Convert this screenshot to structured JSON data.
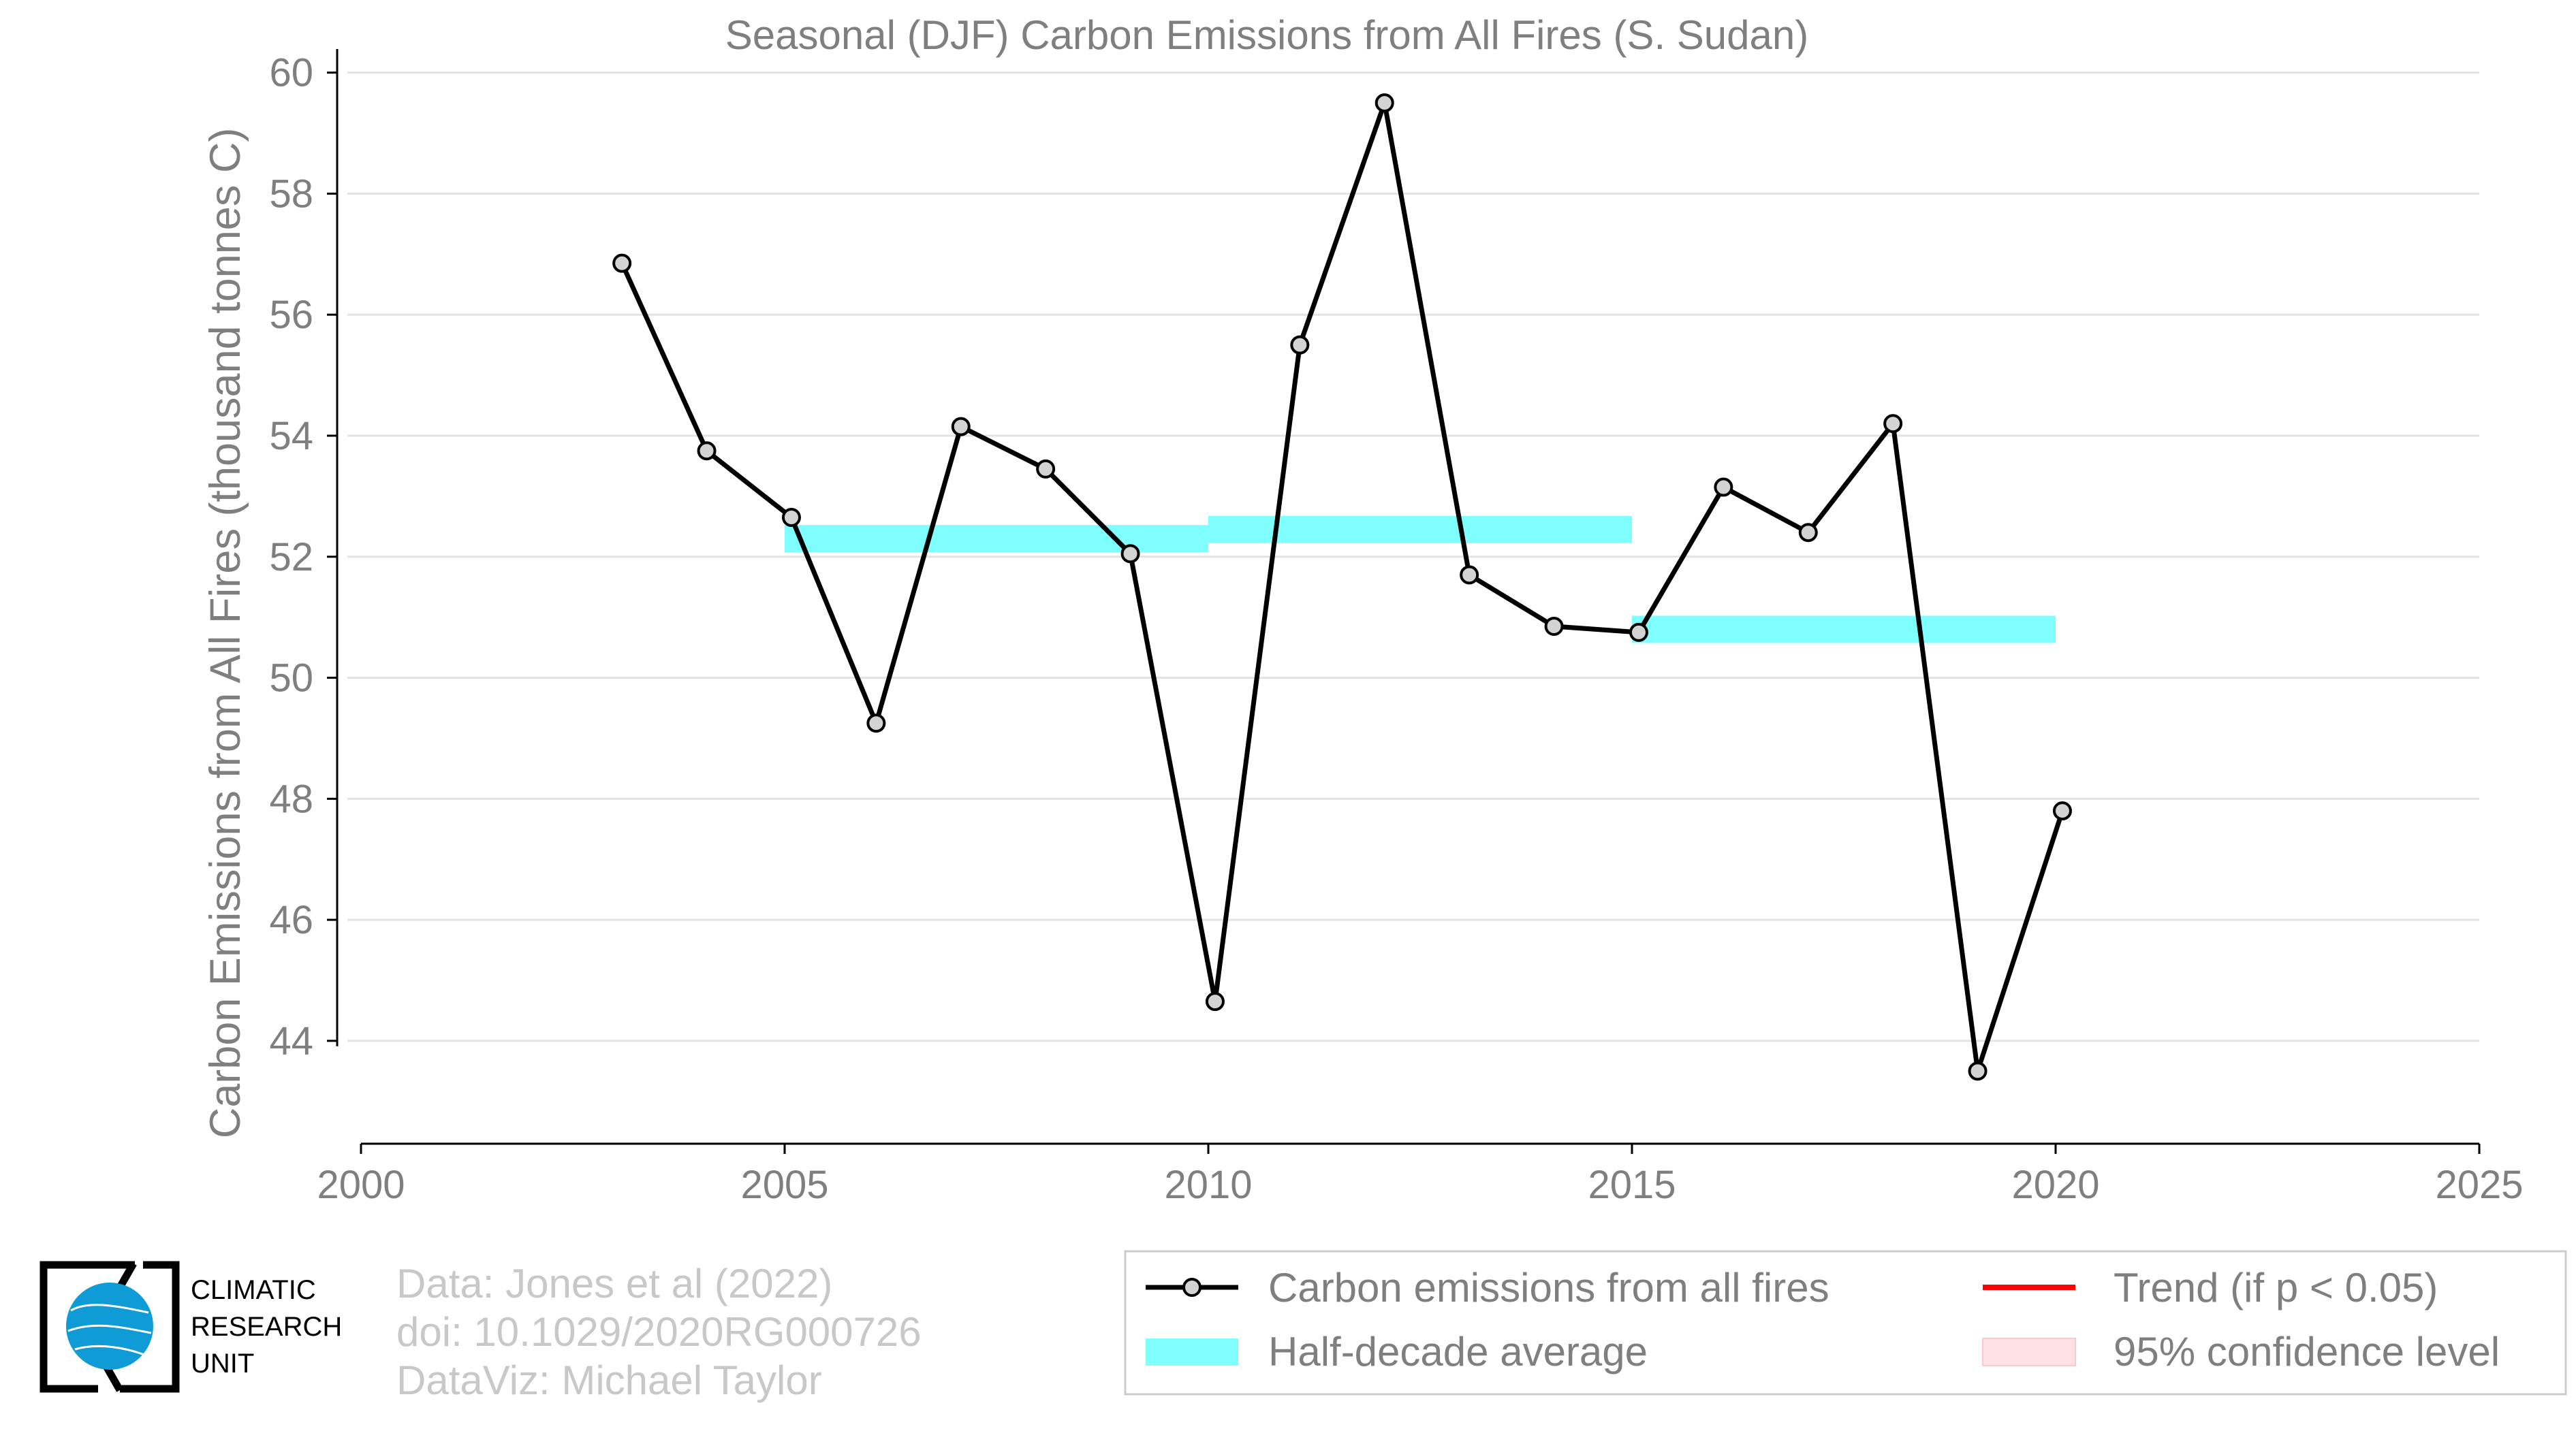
{
  "chart_data": {
    "type": "line",
    "title": "Seasonal (DJF) Carbon Emissions from All Fires (S. Sudan)",
    "xlabel": "",
    "ylabel": "Carbon Emissions from All Fires (thousand tonnes C)",
    "xlim": [
      2000,
      2025
    ],
    "ylim": [
      42.3,
      60.3
    ],
    "xticks": [
      "2000",
      "2005",
      "2010",
      "2015",
      "2020",
      "2025"
    ],
    "yticks": [
      "44",
      "46",
      "48",
      "50",
      "52",
      "54",
      "56",
      "58",
      "60"
    ],
    "grid": "horizontal",
    "series": [
      {
        "name": "Carbon emissions from all fires",
        "color": "#000000",
        "marker_fill": "#d3d3d3",
        "x": [
          2003.08,
          2004.08,
          2005.08,
          2006.08,
          2007.08,
          2008.08,
          2009.08,
          2010.08,
          2011.08,
          2012.08,
          2013.08,
          2014.08,
          2015.08,
          2016.08,
          2017.08,
          2018.08,
          2019.08,
          2020.08
        ],
        "y": [
          56.85,
          53.75,
          52.65,
          49.25,
          54.15,
          53.45,
          52.05,
          44.65,
          55.5,
          59.5,
          51.7,
          50.85,
          50.75,
          53.15,
          52.4,
          54.2,
          43.5,
          47.8
        ]
      }
    ],
    "half_decade_average": {
      "name": "Half-decade average",
      "color": "#7fffff",
      "segments": [
        {
          "x0": 2005,
          "x1": 2010,
          "y": 52.3
        },
        {
          "x0": 2010,
          "x1": 2015,
          "y": 52.45
        },
        {
          "x0": 2015,
          "x1": 2020,
          "y": 50.8
        }
      ]
    },
    "legend": {
      "placement": "bottom-right",
      "entries": [
        {
          "label": "Carbon emissions from all fires",
          "kind": "line-marker",
          "color": "#000000"
        },
        {
          "label": "Half-decade average",
          "kind": "band",
          "color": "#7fffff"
        },
        {
          "label": "Trend (if p < 0.05)",
          "kind": "line",
          "color": "#ff0000"
        },
        {
          "label": "95% confidence level",
          "kind": "band",
          "color": "#ffe0e3"
        }
      ]
    }
  },
  "credits": {
    "data": "Data: Jones et al (2022)",
    "doi": "doi: 10.1029/2020RG000726",
    "dataviz": "DataViz: Michael Taylor"
  },
  "logo": {
    "line1": "CLIMATIC",
    "line2": "RESEARCH",
    "line3": "UNIT",
    "globe_color": "#0e9bd6"
  }
}
